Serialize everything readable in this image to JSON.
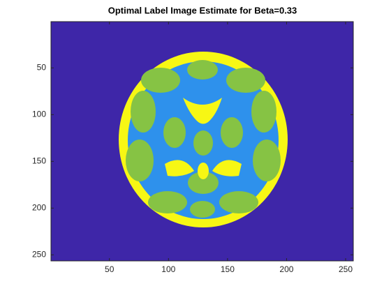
{
  "chart_data": {
    "type": "image",
    "title": "Optimal Label Image Estimate for Beta=0.33",
    "xlim": [
      0.5,
      256.5
    ],
    "ylim": [
      0.5,
      256.5
    ],
    "ydir": "reverse",
    "xticks": [
      50,
      100,
      150,
      200,
      250
    ],
    "yticks": [
      50,
      100,
      150,
      200,
      250
    ],
    "colormap": [
      "#3e26a8",
      "#2e91ec",
      "#86c344",
      "#f7f714"
    ]
  }
}
